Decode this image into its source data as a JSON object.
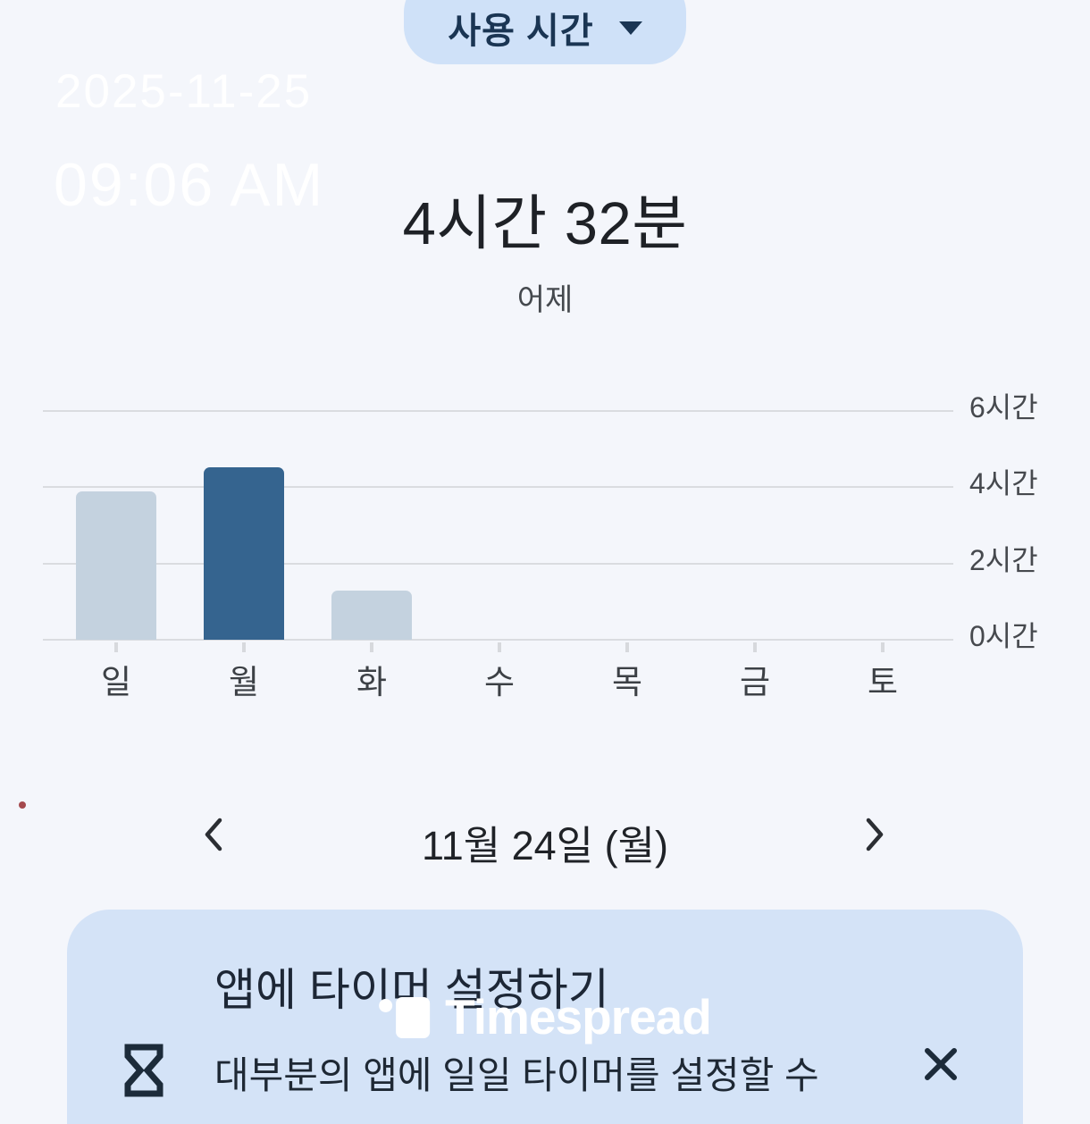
{
  "header": {
    "filter_label": "사용 시간"
  },
  "watermark": {
    "date": "2025-11-25",
    "time": "09:06 AM",
    "brand": "Timespread"
  },
  "summary": {
    "total": "4시간 32분",
    "subtitle": "어제"
  },
  "chart_data": {
    "type": "bar",
    "categories": [
      "일",
      "월",
      "화",
      "수",
      "목",
      "금",
      "토"
    ],
    "values": [
      3.9,
      4.53,
      1.3,
      0,
      0,
      0,
      0
    ],
    "highlighted_index": 1,
    "yticks": [
      {
        "hours": 0,
        "label": "0시간"
      },
      {
        "hours": 2,
        "label": "2시간"
      },
      {
        "hours": 4,
        "label": "4시간"
      },
      {
        "hours": 6,
        "label": "6시간"
      }
    ],
    "ylim": [
      0,
      6.6
    ],
    "title": "",
    "xlabel": "",
    "ylabel": "",
    "legend": null,
    "grid": true,
    "colors": {
      "bar": "#c4d2df",
      "bar_highlight": "#35648f",
      "gridline": "#dadce0"
    }
  },
  "date_nav": {
    "label": "11월 24일 (월)"
  },
  "timer_card": {
    "title": "앱에 타이머 설정하기",
    "description": "대부분의 앱에 일일 타이머를 설정할 수"
  },
  "colors": {
    "background": "#f4f6fb",
    "pill_bg": "#cfe1f8",
    "pill_text": "#1a3553",
    "card_bg": "#d4e3f7",
    "text_primary": "#1e2126",
    "text_secondary": "#45494e"
  }
}
